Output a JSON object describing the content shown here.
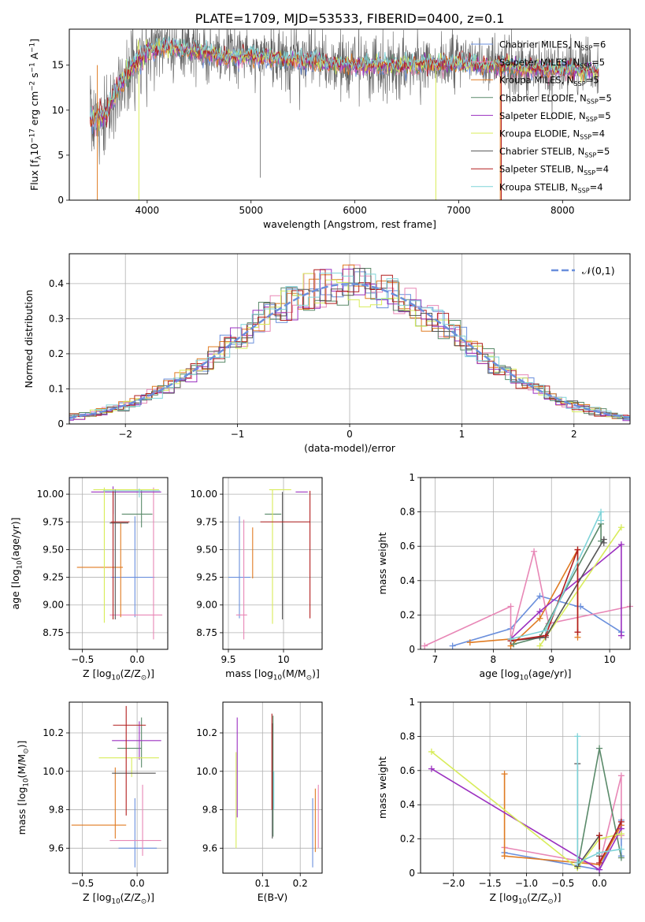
{
  "title": "PLATE=1709, MJD=53533, FIBERID=0400, z=0.1",
  "colors": [
    "#6a8fdc",
    "#e887b6",
    "#e07b22",
    "#5a8a6a",
    "#9b30c0",
    "#d8ec5a",
    "#555555",
    "#b21e1e",
    "#7fd3d8"
  ],
  "legend": [
    "Chabrier MILES, N$_{SSP}$=6",
    "Salpeter MILES, N$_{SSP}$=5",
    "Kroupa MILES, N$_{SSP}$=5",
    "Chabrier ELODIE, N$_{SSP}$=5",
    "Salpeter ELODIE, N$_{SSP}$=5",
    "Kroupa ELODIE, N$_{SSP}$=4",
    "Chabrier STELIB, N$_{SSP}$=5",
    "Salpeter STELIB, N$_{SSP}$=4",
    "Kroupa STELIB, N$_{SSP}$=4"
  ],
  "chart_data": [
    {
      "id": "spectrum",
      "type": "line",
      "xlabel": "wavelength [Angstrom, rest frame]",
      "ylabel": "Flux [f$_\\lambda$10$^{-17}$ erg cm$^{-2}$ s$^{-1}$ A$^{-1}$]",
      "xlim": [
        3250,
        8650
      ],
      "ylim": [
        0,
        19
      ],
      "xticks": [
        4000,
        5000,
        6000,
        7000,
        8000
      ],
      "yticks": [
        0,
        5,
        10,
        15
      ],
      "continuum": [
        [
          3450,
          9.0
        ],
        [
          3600,
          9.3
        ],
        [
          3700,
          12.0
        ],
        [
          3800,
          14.0
        ],
        [
          3900,
          15.5
        ],
        [
          4000,
          16.5
        ],
        [
          4200,
          17.0
        ],
        [
          4500,
          16.5
        ],
        [
          4800,
          15.8
        ],
        [
          5000,
          16.0
        ],
        [
          5500,
          15.5
        ],
        [
          6000,
          15.0
        ],
        [
          6500,
          15.0
        ],
        [
          7000,
          15.2
        ],
        [
          7500,
          14.8
        ],
        [
          8000,
          14.5
        ],
        [
          8350,
          14.3
        ]
      ]
    },
    {
      "id": "residuals",
      "type": "histogram",
      "xlabel": "(data-model)/error",
      "ylabel": "Normed distribution",
      "xlim": [
        -2.5,
        2.5
      ],
      "ylim": [
        0,
        0.485
      ],
      "xticks": [
        -2,
        -1,
        0,
        1,
        2
      ],
      "yticks": [
        0.0,
        0.1,
        0.2,
        0.3,
        0.4
      ],
      "bin_width": 0.1,
      "normal_curve_label": "$\\mathcal{N}(0,1)$"
    },
    {
      "id": "age-vs-Z",
      "type": "errorbar",
      "xlabel": "Z [log$_{10}$(Z/Z$_\\odot$)]",
      "ylabel": "age  [log$_{10}$(age/yr)]",
      "xlim": [
        -0.62,
        0.28
      ],
      "ylim": [
        8.6,
        10.15
      ],
      "xticks": [
        -0.5,
        0.0
      ],
      "xticklabels": [
        "−0.5",
        "0.0"
      ],
      "yticks": [
        8.75,
        9.0,
        9.25,
        9.5,
        9.75,
        10.0
      ],
      "yticklabels": [
        "8.75",
        "9.00",
        "9.25",
        "9.50",
        "9.75",
        "10.00"
      ],
      "points": [
        {
          "x": -0.02,
          "xerr": [
            0.22,
            0.18
          ],
          "y": 9.25,
          "yerr": [
            0.36,
            0.55
          ]
        },
        {
          "x": 0.15,
          "xerr": [
            0.4,
            0.08
          ],
          "y": 8.91,
          "yerr": [
            0.22,
            1.15
          ]
        },
        {
          "x": -0.15,
          "xerr": [
            0.4,
            0.02
          ],
          "y": 9.34,
          "yerr": [
            0.45,
            0.4
          ]
        },
        {
          "x": 0.04,
          "xerr": [
            0.18,
            0.1
          ],
          "y": 9.82,
          "yerr": [
            0.12,
            0.22
          ]
        },
        {
          "x": -0.22,
          "xerr": [
            0.2,
            0.44
          ],
          "y": 10.02,
          "yerr": [
            0.2,
            0.05
          ]
        },
        {
          "x": -0.3,
          "xerr": [
            0.1,
            0.5
          ],
          "y": 10.04,
          "yerr": [
            1.2,
            0.02
          ]
        },
        {
          "x": -0.2,
          "xerr": [
            0.05,
            0.12
          ],
          "y": 9.74,
          "yerr": [
            0.87,
            0.3
          ]
        },
        {
          "x": -0.22,
          "xerr": [
            0.02,
            0.15
          ],
          "y": 9.75,
          "yerr": [
            0.88,
            0.28
          ]
        },
        {
          "x": 0.02,
          "xerr": [
            0.33,
            0.19
          ],
          "y": 10.03,
          "yerr": [
            0.06,
            0.02
          ]
        }
      ]
    },
    {
      "id": "age-vs-mass",
      "type": "errorbar",
      "xlabel": "mass [log$_{10}$(M/M$_\\odot$)]",
      "ylabel": "",
      "xlim": [
        9.45,
        10.35
      ],
      "ylim": [
        8.6,
        10.15
      ],
      "xticks": [
        9.5,
        10.0
      ],
      "yticks": [
        8.75,
        9.0,
        9.25,
        9.5,
        9.75,
        10.0
      ],
      "yticklabels": [
        "8.75",
        "9.00",
        "9.25",
        "9.50",
        "9.75",
        "10.00"
      ],
      "points": [
        {
          "x": 9.6,
          "xerr": [
            0.1,
            0.1
          ],
          "y": 9.25,
          "yerr": [
            0.37,
            0.55
          ]
        },
        {
          "x": 9.64,
          "xerr": [
            0.07,
            0.03
          ],
          "y": 8.91,
          "yerr": [
            0.22,
            0.86
          ]
        },
        {
          "x": 9.72,
          "xerr": [
            0.0,
            0.0
          ],
          "y": 9.34,
          "yerr": [
            0.1,
            0.36
          ]
        },
        {
          "x": 9.98,
          "xerr": [
            0.15,
            0.0
          ],
          "y": 9.82,
          "yerr": [
            0.0,
            0.0
          ]
        },
        {
          "x": 10.15,
          "xerr": [
            0.04,
            0.07
          ],
          "y": 10.02,
          "yerr": [
            0.0,
            0.0
          ]
        },
        {
          "x": 9.9,
          "xerr": [
            0.03,
            0.17
          ],
          "y": 10.04,
          "yerr": [
            1.21,
            0.0
          ]
        },
        {
          "x": 9.99,
          "xerr": [
            0.0,
            0.0
          ],
          "y": 9.74,
          "yerr": [
            0.87,
            0.28
          ]
        },
        {
          "x": 10.24,
          "xerr": [
            0.45,
            0.0
          ],
          "y": 9.75,
          "yerr": [
            0.87,
            0.28
          ]
        },
        {
          "x": 10.1,
          "xerr": [
            0.0,
            0.0
          ],
          "y": 10.03,
          "yerr": [
            0.0,
            0.0
          ]
        }
      ]
    },
    {
      "id": "weight-vs-age",
      "type": "line",
      "xlabel": "age  [log$_{10}$(age/yr)]",
      "ylabel": "mass weight",
      "xlim": [
        6.75,
        10.35
      ],
      "ylim": [
        0,
        1
      ],
      "xticks": [
        7,
        8,
        9,
        10
      ],
      "yticks": [
        0.0,
        0.2,
        0.4,
        0.6,
        0.8,
        1.0
      ],
      "series": [
        {
          "points": [
            [
              7.3,
              0.02
            ],
            [
              8.3,
              0.12
            ],
            [
              8.8,
              0.31
            ],
            [
              9.45,
              0.25
            ],
            [
              9.5,
              0.25
            ],
            [
              10.2,
              0.1
            ]
          ]
        },
        {
          "points": [
            [
              6.82,
              0.02
            ],
            [
              8.3,
              0.25
            ],
            [
              8.3,
              0.05
            ],
            [
              8.7,
              0.57
            ],
            [
              8.95,
              0.15
            ],
            [
              10.35,
              0.25
            ]
          ]
        },
        {
          "points": [
            [
              7.6,
              0.04
            ],
            [
              8.3,
              0.06
            ],
            [
              8.3,
              0.02
            ],
            [
              8.8,
              0.18
            ],
            [
              9.45,
              0.58
            ],
            [
              9.45,
              0.07
            ]
          ]
        },
        {
          "points": [
            [
              8.35,
              0.03
            ],
            [
              8.8,
              0.07
            ],
            [
              9.85,
              0.73
            ],
            [
              9.85,
              0.63
            ]
          ]
        },
        {
          "points": [
            [
              8.3,
              0.06
            ],
            [
              8.8,
              0.22
            ],
            [
              10.2,
              0.61
            ],
            [
              10.2,
              0.08
            ]
          ]
        },
        {
          "points": [
            [
              8.8,
              0.02
            ],
            [
              10.2,
              0.71
            ]
          ]
        },
        {
          "points": [
            [
              8.3,
              0.05
            ],
            [
              8.9,
              0.07
            ],
            [
              9.9,
              0.64
            ],
            [
              9.9,
              0.62
            ]
          ]
        },
        {
          "points": [
            [
              8.3,
              0.05
            ],
            [
              8.9,
              0.08
            ],
            [
              9.45,
              0.58
            ],
            [
              9.45,
              0.1
            ]
          ]
        },
        {
          "points": [
            [
              8.3,
              0.06
            ],
            [
              8.9,
              0.11
            ],
            [
              9.85,
              0.8
            ],
            [
              9.85,
              0.75
            ]
          ]
        }
      ]
    },
    {
      "id": "mass-vs-Z",
      "type": "errorbar",
      "xlabel": "Z [log$_{10}$(Z/Z$_\\odot$)]",
      "ylabel": "mass [log$_{10}$(M/M$_\\odot$)]",
      "xlim": [
        -0.62,
        0.28
      ],
      "ylim": [
        9.47,
        10.36
      ],
      "xticks": [
        -0.5,
        0.0
      ],
      "xticklabels": [
        "−0.5",
        "0.0"
      ],
      "yticks": [
        9.6,
        9.8,
        10.0,
        10.2
      ],
      "yticklabels": [
        "9.6",
        "9.8",
        "10.0",
        "10.2"
      ],
      "points": [
        {
          "x": -0.02,
          "xerr": [
            0.15,
            0.2
          ],
          "y": 9.6,
          "yerr": [
            0.1,
            0.26
          ]
        },
        {
          "x": 0.05,
          "xerr": [
            0.3,
            0.17
          ],
          "y": 9.64,
          "yerr": [
            0.08,
            0.29
          ]
        },
        {
          "x": -0.2,
          "xerr": [
            0.4,
            0.1
          ],
          "y": 9.72,
          "yerr": [
            0.07,
            0.3
          ]
        },
        {
          "x": 0.04,
          "xerr": [
            0.22,
            0.0
          ],
          "y": 10.12,
          "yerr": [
            0.1,
            0.16
          ]
        },
        {
          "x": 0.02,
          "xerr": [
            0.25,
            0.2
          ],
          "y": 10.16,
          "yerr": [
            0.1,
            0.1
          ]
        },
        {
          "x": -0.05,
          "xerr": [
            0.3,
            0.25
          ],
          "y": 10.07,
          "yerr": [
            0.1,
            0.0
          ]
        },
        {
          "x": -0.03,
          "xerr": [
            0.2,
            0.2
          ],
          "y": 9.99,
          "yerr": [
            0.0,
            0.0
          ]
        },
        {
          "x": -0.1,
          "xerr": [
            0.12,
            0.18
          ],
          "y": 10.24,
          "yerr": [
            0.47,
            0.1
          ]
        },
        {
          "x": -0.1,
          "xerr": [
            0.0,
            0.0
          ],
          "y": 10.11,
          "yerr": [
            0.0,
            0.0
          ]
        }
      ]
    },
    {
      "id": "mass-vs-EBV",
      "type": "errorbar",
      "xlabel": "E(B-V)",
      "ylabel": "",
      "xlim": [
        -0.005,
        0.258
      ],
      "ylim": [
        9.47,
        10.36
      ],
      "xticks": [
        0.1,
        0.2
      ],
      "yticks": [
        9.6,
        9.8,
        10.0,
        10.2
      ],
      "yticklabels": [
        "9.6",
        "9.8",
        "10.0",
        "10.2"
      ],
      "vlines": [
        {
          "x": 0.233,
          "y": [
            9.5,
            9.86
          ]
        },
        {
          "x": 0.248,
          "y": [
            9.6,
            9.93
          ]
        },
        {
          "x": 0.24,
          "y": [
            9.58,
            9.91
          ]
        },
        {
          "x": 0.128,
          "y": [
            9.66,
            10.29
          ]
        },
        {
          "x": 0.033,
          "y": [
            9.76,
            10.28
          ]
        },
        {
          "x": 0.03,
          "y": [
            9.6,
            10.1
          ]
        },
        {
          "x": 0.126,
          "y": [
            9.65,
            10.25
          ]
        },
        {
          "x": 0.125,
          "y": [
            9.8,
            10.3
          ]
        },
        {
          "x": 0.13,
          "y": [
            9.8,
            10.0
          ]
        }
      ]
    },
    {
      "id": "weight-vs-Z",
      "type": "line",
      "xlabel": "Z [log$_{10}$(Z/Z$_\\odot$)]",
      "ylabel": "mass weight",
      "xlim": [
        -2.45,
        0.42
      ],
      "ylim": [
        0,
        1
      ],
      "xticks": [
        -2.0,
        -1.5,
        -1.0,
        -0.5,
        0.0
      ],
      "xticklabels": [
        "−2.0",
        "−1.5",
        "−1.0",
        "−0.5",
        "0.0"
      ],
      "yticks": [
        0.0,
        0.2,
        0.4,
        0.6,
        0.8,
        1.0
      ],
      "series": [
        {
          "points": [
            [
              -1.3,
              0.12
            ],
            [
              0.0,
              0.02
            ],
            [
              0.3,
              0.31
            ],
            [
              0.3,
              0.1
            ]
          ]
        },
        {
          "points": [
            [
              -1.3,
              0.15
            ],
            [
              0.0,
              0.05
            ],
            [
              0.3,
              0.57
            ],
            [
              0.3,
              0.22
            ]
          ]
        },
        {
          "points": [
            [
              -1.3,
              0.58
            ],
            [
              -1.3,
              0.1
            ],
            [
              0.0,
              0.05
            ],
            [
              0.3,
              0.28
            ]
          ]
        },
        {
          "points": [
            [
              -0.3,
              0.03
            ],
            [
              0.0,
              0.73
            ],
            [
              0.3,
              0.09
            ]
          ]
        },
        {
          "points": [
            [
              -2.3,
              0.61
            ],
            [
              0.0,
              0.02
            ],
            [
              0.3,
              0.26
            ]
          ]
        },
        {
          "points": [
            [
              -2.3,
              0.71
            ],
            [
              -0.3,
              0.03
            ],
            [
              0.0,
              0.2
            ],
            [
              0.3,
              0.23
            ]
          ]
        },
        {
          "points": [
            [
              -0.3,
              0.64
            ],
            [
              -0.3,
              0.04
            ],
            [
              0.0,
              0.22
            ],
            [
              0.0,
              0.1
            ]
          ]
        },
        {
          "points": [
            [
              0.0,
              0.22
            ],
            [
              0.0,
              0.06
            ],
            [
              0.3,
              0.3
            ]
          ]
        },
        {
          "points": [
            [
              -0.3,
              0.8
            ],
            [
              -0.3,
              0.06
            ],
            [
              0.0,
              0.12
            ],
            [
              0.3,
              0.14
            ]
          ]
        }
      ]
    }
  ]
}
